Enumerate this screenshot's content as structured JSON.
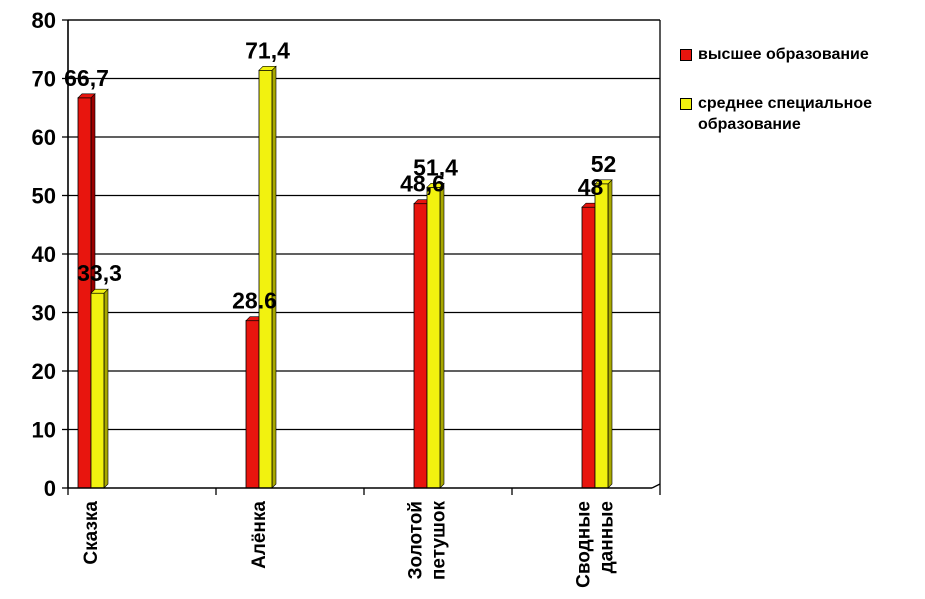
{
  "chart_data": {
    "type": "bar",
    "categories": [
      "Сказка",
      "Алёнка",
      "Золотой петушок",
      "Сводные данные"
    ],
    "category_lines": [
      [
        "Сказка"
      ],
      [
        "Алёнка"
      ],
      [
        "Золотой",
        "петушок"
      ],
      [
        "Сводные",
        "данные"
      ]
    ],
    "series": [
      {
        "name": "высшее образование",
        "color": "#e8150e",
        "dark": "#9c0000",
        "values": [
          66.7,
          28.6,
          48.6,
          48
        ],
        "labels": [
          "66,7",
          "28.6",
          "48,6",
          "48"
        ]
      },
      {
        "name": "среднее специальное образование",
        "color": "#f2f20f",
        "dark": "#a8a800",
        "values": [
          33.3,
          71.4,
          51.4,
          52
        ],
        "labels": [
          "33,3",
          "71,4",
          "51,4",
          "52"
        ]
      }
    ],
    "ylim": [
      0,
      80
    ],
    "yticks": [
      0,
      10,
      20,
      30,
      40,
      50,
      60,
      70,
      80
    ],
    "grid": true,
    "legend_position": "right"
  }
}
